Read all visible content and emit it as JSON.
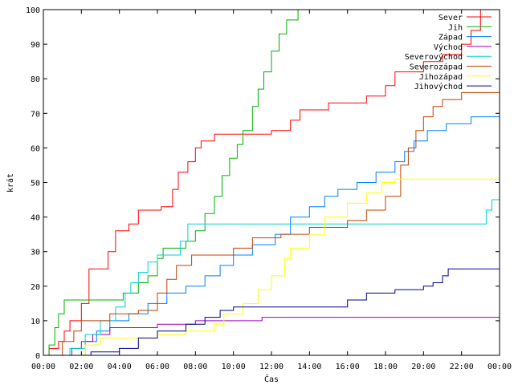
{
  "chart_data": {
    "type": "line",
    "title": "",
    "xlabel": "Čas",
    "ylabel": "krát",
    "xlim": [
      0,
      24
    ],
    "ylim": [
      0,
      100
    ],
    "x_ticks": [
      {
        "value": 0,
        "label": "00:00"
      },
      {
        "value": 2,
        "label": "02:00"
      },
      {
        "value": 4,
        "label": "04:00"
      },
      {
        "value": 6,
        "label": "06:00"
      },
      {
        "value": 8,
        "label": "08:00"
      },
      {
        "value": 10,
        "label": "10:00"
      },
      {
        "value": 12,
        "label": "12:00"
      },
      {
        "value": 14,
        "label": "14:00"
      },
      {
        "value": 16,
        "label": "16:00"
      },
      {
        "value": 18,
        "label": "18:00"
      },
      {
        "value": 20,
        "label": "20:00"
      },
      {
        "value": 22,
        "label": "22:00"
      },
      {
        "value": 24,
        "label": "00:00"
      }
    ],
    "y_ticks": [
      {
        "value": 0,
        "label": "0"
      },
      {
        "value": 10,
        "label": "10"
      },
      {
        "value": 20,
        "label": "20"
      },
      {
        "value": 30,
        "label": "30"
      },
      {
        "value": 40,
        "label": "40"
      },
      {
        "value": 50,
        "label": "50"
      },
      {
        "value": 60,
        "label": "60"
      },
      {
        "value": 70,
        "label": "70"
      },
      {
        "value": 80,
        "label": "80"
      },
      {
        "value": 90,
        "label": "90"
      },
      {
        "value": 100,
        "label": "100"
      }
    ],
    "grid": false,
    "legend_position": "top-right",
    "series": [
      {
        "name": "Sever",
        "color": "#ff0000",
        "points": [
          [
            0,
            0
          ],
          [
            0.3,
            2
          ],
          [
            0.8,
            4
          ],
          [
            1.1,
            7
          ],
          [
            1.4,
            10
          ],
          [
            2,
            15
          ],
          [
            2.4,
            25
          ],
          [
            3.4,
            30
          ],
          [
            3.8,
            36
          ],
          [
            4.5,
            38
          ],
          [
            5,
            42
          ],
          [
            6.2,
            43
          ],
          [
            6.8,
            48
          ],
          [
            7.1,
            53
          ],
          [
            7.6,
            56
          ],
          [
            8,
            60
          ],
          [
            8.3,
            62
          ],
          [
            9,
            64
          ],
          [
            10,
            64
          ],
          [
            12,
            65
          ],
          [
            13,
            68
          ],
          [
            13.5,
            71
          ],
          [
            15,
            73
          ],
          [
            17,
            75
          ],
          [
            18,
            78
          ],
          [
            18.5,
            82
          ],
          [
            20,
            85
          ],
          [
            21,
            87
          ],
          [
            22,
            90
          ],
          [
            22.5,
            94
          ],
          [
            23,
            100
          ]
        ]
      },
      {
        "name": "Jih",
        "color": "#00b000",
        "points": [
          [
            0,
            0
          ],
          [
            0.3,
            3
          ],
          [
            0.6,
            8
          ],
          [
            0.8,
            12
          ],
          [
            1.1,
            16
          ],
          [
            3.5,
            16
          ],
          [
            4.2,
            18
          ],
          [
            5,
            21
          ],
          [
            5.5,
            23
          ],
          [
            6,
            28
          ],
          [
            6.3,
            31
          ],
          [
            7.5,
            33
          ],
          [
            8,
            36
          ],
          [
            8.5,
            41
          ],
          [
            9,
            46
          ],
          [
            9.4,
            52
          ],
          [
            9.8,
            57
          ],
          [
            10.2,
            61
          ],
          [
            10.5,
            65
          ],
          [
            11,
            72
          ],
          [
            11.3,
            77
          ],
          [
            11.6,
            82
          ],
          [
            12,
            88
          ],
          [
            12.4,
            93
          ],
          [
            12.8,
            97
          ],
          [
            13.4,
            100
          ]
        ]
      },
      {
        "name": "Západ",
        "color": "#0080ff",
        "points": [
          [
            0,
            0
          ],
          [
            2.2,
            4
          ],
          [
            2.8,
            7
          ],
          [
            3.5,
            10
          ],
          [
            4.5,
            12
          ],
          [
            5.5,
            15
          ],
          [
            6.5,
            18
          ],
          [
            7.5,
            20
          ],
          [
            8.5,
            23
          ],
          [
            9.3,
            26
          ],
          [
            10,
            29
          ],
          [
            11,
            32
          ],
          [
            12.2,
            35
          ],
          [
            13,
            40
          ],
          [
            14,
            43
          ],
          [
            14.8,
            46
          ],
          [
            15.5,
            48
          ],
          [
            16.5,
            50
          ],
          [
            17.5,
            53
          ],
          [
            18.5,
            56
          ],
          [
            19,
            59
          ],
          [
            19.5,
            62
          ],
          [
            20.2,
            65
          ],
          [
            21.2,
            67
          ],
          [
            22.5,
            69
          ],
          [
            24,
            69
          ]
        ]
      },
      {
        "name": "Východ",
        "color": "#a000c0",
        "points": [
          [
            0,
            0
          ],
          [
            1.5,
            2
          ],
          [
            2,
            4
          ],
          [
            2.6,
            6
          ],
          [
            3.5,
            8
          ],
          [
            6,
            9
          ],
          [
            8,
            10
          ],
          [
            11.5,
            11
          ],
          [
            24,
            11
          ]
        ]
      },
      {
        "name": "Severovýchod",
        "color": "#00d0d0",
        "points": [
          [
            0,
            0
          ],
          [
            1.4,
            2
          ],
          [
            2.2,
            6
          ],
          [
            3,
            10
          ],
          [
            3.8,
            14
          ],
          [
            4.3,
            18
          ],
          [
            4.6,
            21
          ],
          [
            5,
            24
          ],
          [
            5.5,
            27
          ],
          [
            6,
            29
          ],
          [
            7.2,
            33
          ],
          [
            7.6,
            38
          ],
          [
            22.8,
            38
          ],
          [
            23.3,
            42
          ],
          [
            23.6,
            45
          ],
          [
            24,
            45
          ]
        ]
      },
      {
        "name": "Severozápad",
        "color": "#c04000",
        "points": [
          [
            0,
            0
          ],
          [
            1,
            4
          ],
          [
            1.6,
            7
          ],
          [
            2,
            10
          ],
          [
            3.5,
            12
          ],
          [
            5,
            13
          ],
          [
            6,
            18
          ],
          [
            6.5,
            22
          ],
          [
            7,
            26
          ],
          [
            7.8,
            29
          ],
          [
            10,
            31
          ],
          [
            11,
            34
          ],
          [
            12.5,
            35
          ],
          [
            14,
            37
          ],
          [
            16,
            39
          ],
          [
            17,
            42
          ],
          [
            18,
            46
          ],
          [
            18.8,
            55
          ],
          [
            19.2,
            60
          ],
          [
            19.6,
            65
          ],
          [
            20,
            69
          ],
          [
            20.5,
            72
          ],
          [
            21,
            74
          ],
          [
            22,
            76
          ],
          [
            24,
            76
          ]
        ]
      },
      {
        "name": "Jihozápad",
        "color": "#ffff00",
        "points": [
          [
            0,
            0
          ],
          [
            2.2,
            3
          ],
          [
            3,
            5
          ],
          [
            6,
            6
          ],
          [
            7.5,
            7
          ],
          [
            9,
            9
          ],
          [
            9.5,
            12
          ],
          [
            10.5,
            15
          ],
          [
            11.3,
            19
          ],
          [
            12,
            23
          ],
          [
            12.7,
            28
          ],
          [
            13,
            31
          ],
          [
            14,
            35
          ],
          [
            14.8,
            40
          ],
          [
            16,
            44
          ],
          [
            17,
            47
          ],
          [
            17.8,
            50
          ],
          [
            18.5,
            51
          ],
          [
            24,
            51
          ]
        ]
      },
      {
        "name": "Jihovýchod",
        "color": "#000090",
        "points": [
          [
            0,
            0
          ],
          [
            2.5,
            1
          ],
          [
            4,
            2
          ],
          [
            5,
            5
          ],
          [
            6,
            7
          ],
          [
            7.5,
            9
          ],
          [
            8.5,
            11
          ],
          [
            9.3,
            13
          ],
          [
            10,
            14
          ],
          [
            16,
            16
          ],
          [
            17,
            18
          ],
          [
            18.5,
            19
          ],
          [
            20,
            20
          ],
          [
            20.5,
            21
          ],
          [
            21,
            23
          ],
          [
            21.3,
            25
          ],
          [
            24,
            25
          ]
        ]
      }
    ]
  }
}
